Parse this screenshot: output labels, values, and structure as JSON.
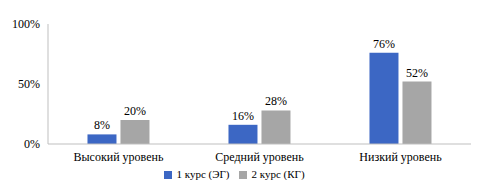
{
  "chart_data": {
    "type": "bar",
    "categories": [
      "Высокий уровень",
      "Средний уровень",
      "Низкий уровень"
    ],
    "series": [
      {
        "name": "1 курс (ЭГ)",
        "color": "#3c67c4",
        "values": [
          8,
          16,
          76
        ],
        "value_labels": [
          "8%",
          "16%",
          "76%"
        ]
      },
      {
        "name": "2 курс (КГ)",
        "color": "#a6a6a6",
        "values": [
          20,
          28,
          52
        ],
        "value_labels": [
          "20%",
          "28%",
          "52%"
        ]
      }
    ],
    "ylim": [
      0,
      100
    ],
    "yticks": [
      {
        "value": 0,
        "label": "0%"
      },
      {
        "value": 50,
        "label": "50%"
      },
      {
        "value": 100,
        "label": "100%"
      }
    ],
    "grid": false,
    "legend": "bottom",
    "data_labels": true
  }
}
